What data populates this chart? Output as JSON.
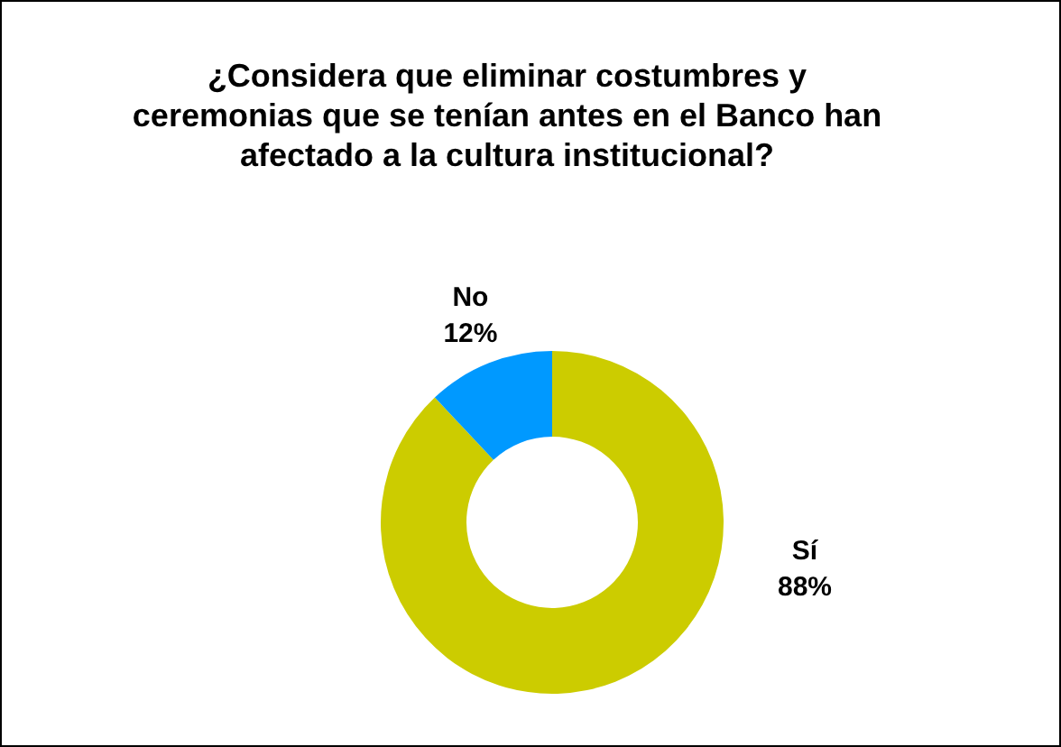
{
  "chart_data": {
    "type": "donut",
    "title": "¿Considera que eliminar costumbres y ceremonias que se tenían antes en el Banco han afectado a la cultura institucional?",
    "categories": [
      "Sí",
      "No"
    ],
    "values": [
      88,
      12
    ],
    "colors": [
      "#cccc00",
      "#0099ff"
    ],
    "value_labels": [
      "88%",
      "12%"
    ],
    "legend": false
  }
}
